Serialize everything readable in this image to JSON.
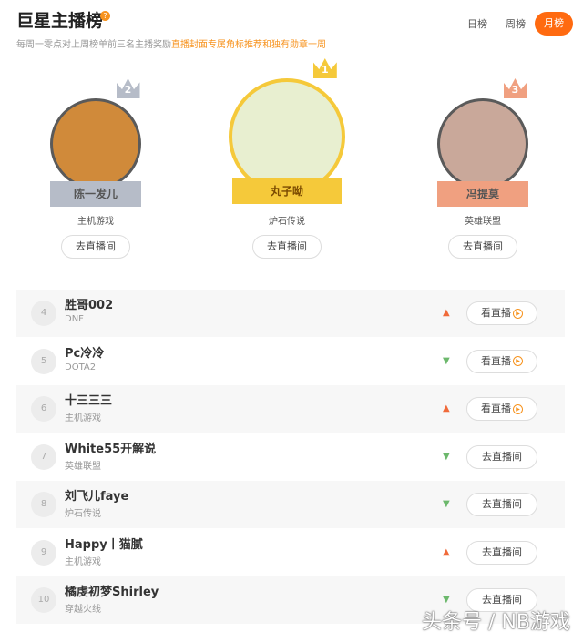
{
  "header": {
    "title": "巨星主播榜",
    "help_icon": "?",
    "subtitle_prefix": "每周一零点对上周榜单前三名主播奖励",
    "subtitle_highlight": "直播封面专属角标推荐和独有勋章一周",
    "tabs": [
      {
        "label": "日榜"
      },
      {
        "label": "周榜"
      },
      {
        "label": "月榜",
        "active": true
      }
    ],
    "accent": "#ff6a10"
  },
  "podium": [
    {
      "rank": "2",
      "name": "陈一发儿",
      "game": "主机游戏",
      "button": "去直播间",
      "color": "#b6bcc8"
    },
    {
      "rank": "1",
      "name": "丸子呦",
      "game": "炉石传说",
      "button": "去直播间",
      "color": "#f5c93a"
    },
    {
      "rank": "3",
      "name": "冯提莫",
      "game": "英雄联盟",
      "button": "去直播间",
      "color": "#f0a080"
    }
  ],
  "list": [
    {
      "rank": "4",
      "name": "胜哥002",
      "game": "DNF",
      "trend": "up",
      "button": "看直播"
    },
    {
      "rank": "5",
      "name": "Pc冷冷",
      "game": "DOTA2",
      "trend": "down",
      "button": "看直播"
    },
    {
      "rank": "6",
      "name": "十三三三",
      "game": "主机游戏",
      "trend": "up",
      "button": "看直播"
    },
    {
      "rank": "7",
      "name": "White55开解说",
      "game": "英雄联盟",
      "trend": "down",
      "button": "去直播间"
    },
    {
      "rank": "8",
      "name": "刘飞儿faye",
      "game": "炉石传说",
      "trend": "down",
      "button": "去直播间"
    },
    {
      "rank": "9",
      "name": "Happy丨猫腻",
      "game": "主机游戏",
      "trend": "up",
      "button": "去直播间"
    },
    {
      "rank": "10",
      "name": "橘虔初梦Shirley",
      "game": "穿越火线",
      "trend": "down",
      "button": "去直播间"
    }
  ],
  "watermark": "头条号 / NB游戏"
}
